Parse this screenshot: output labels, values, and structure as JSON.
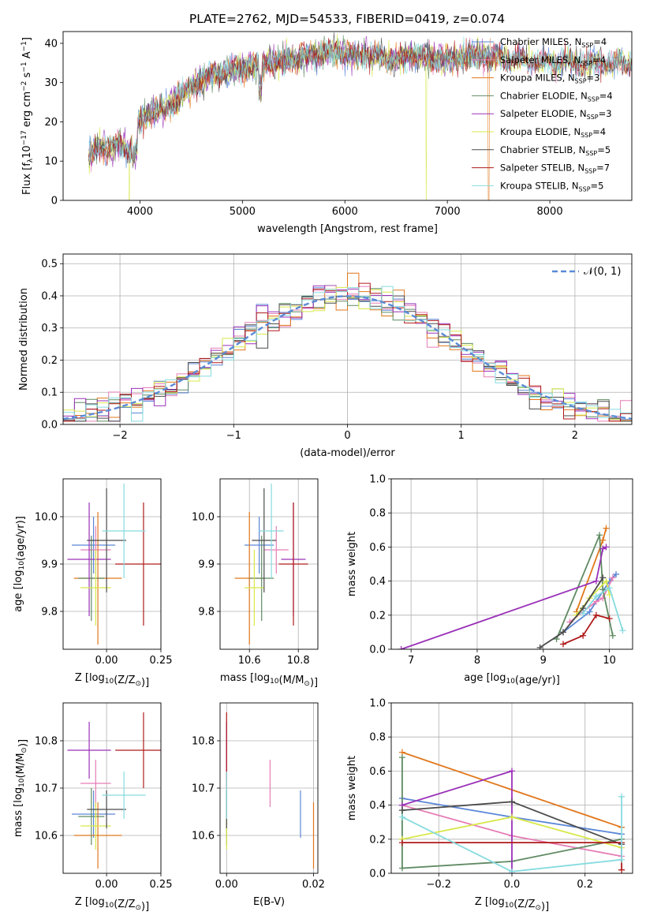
{
  "figure": {
    "title": "PLATE=2762, MJD=54533, FIBERID=0419, z=0.074"
  },
  "colors": {
    "Chabrier MILES": "#5a86d6",
    "Salpeter MILES": "#e67eb6",
    "Kroupa MILES": "#e1771b",
    "Chabrier ELODIE": "#5f8a62",
    "Salpeter ELODIE": "#9a31b8",
    "Kroupa ELODIE": "#d8e84b",
    "Chabrier STELIB": "#4b4b4b",
    "Salpeter STELIB": "#b01a1a",
    "Kroupa STELIB": "#86dbdf",
    "normal": "#5b8bd6"
  },
  "chart_data": [
    {
      "id": "spectrum",
      "type": "line",
      "title": "PLATE=2762, MJD=54533, FIBERID=0419, z=0.074",
      "xlabel": "wavelength [Angstrom, rest frame]",
      "ylabel_parts": [
        "Flux [f",
        "λ",
        "10",
        "−17",
        " erg cm",
        "−2",
        " s",
        "−1",
        " A",
        "−1",
        "]"
      ],
      "xlim": [
        3250,
        8800
      ],
      "ylim": [
        0,
        43
      ],
      "xticks": [
        "4000",
        "5000",
        "6000",
        "7000",
        "8000"
      ],
      "xtick_values": [
        4000,
        5000,
        6000,
        7000,
        8000
      ],
      "yticks": [
        "0",
        "10",
        "20",
        "30",
        "40"
      ],
      "ytick_values": [
        0,
        10,
        20,
        30,
        40
      ],
      "grid": false,
      "legend_position": "top-right",
      "continuum": {
        "x": [
          3500,
          3600,
          3700,
          3800,
          3900,
          4000,
          4100,
          4200,
          4300,
          4400,
          4500,
          4700,
          4900,
          5100,
          5300,
          5500,
          5700,
          5900,
          6100,
          6300,
          6500,
          6700,
          6900,
          7100,
          7300,
          7500,
          7700,
          7900,
          8100,
          8300,
          8500,
          8700
        ],
        "y": [
          11,
          14,
          13,
          15,
          12,
          21,
          22,
          23,
          24,
          27,
          29,
          32,
          33,
          34,
          35,
          36,
          37,
          38,
          37,
          37,
          36,
          37,
          36,
          36,
          37,
          36,
          36,
          35,
          35,
          35,
          35,
          35
        ]
      },
      "series": [
        {
          "name": "Chabrier MILES",
          "N": "4"
        },
        {
          "name": "Salpeter MILES",
          "N": "4"
        },
        {
          "name": "Kroupa MILES",
          "N": "3"
        },
        {
          "name": "Chabrier ELODIE",
          "N": "4"
        },
        {
          "name": "Salpeter ELODIE",
          "N": "3"
        },
        {
          "name": "Kroupa ELODIE",
          "N": "4"
        },
        {
          "name": "Chabrier STELIB",
          "N": "5"
        },
        {
          "name": "Salpeter STELIB",
          "N": "7"
        },
        {
          "name": "Kroupa STELIB",
          "N": "5"
        }
      ]
    },
    {
      "id": "residuals",
      "type": "bar",
      "xlabel": "(data-model)/error",
      "ylabel": "Normed distribution",
      "xlim": [
        -2.5,
        2.5
      ],
      "ylim": [
        0,
        0.53
      ],
      "xticks": [
        "−2",
        "−1",
        "0",
        "1",
        "2"
      ],
      "xtick_values": [
        -2,
        -1,
        0,
        1,
        2
      ],
      "yticks": [
        "0.0",
        "0.1",
        "0.2",
        "0.3",
        "0.4",
        "0.5"
      ],
      "ytick_values": [
        0,
        0.1,
        0.2,
        0.3,
        0.4,
        0.5
      ],
      "grid": true,
      "legend_position": "top-right",
      "normal_label": "𝒩(0, 1)",
      "bin_width": 0.1
    },
    {
      "id": "age-vs-Z",
      "type": "scatter",
      "xlabel": "Z [log10(Z/Z⊙)]",
      "ylabel": "age  [log10(age/yr)]",
      "xlim": [
        -0.2,
        0.25
      ],
      "ylim": [
        9.72,
        10.08
      ],
      "xticks": [
        "0.00",
        "0.25"
      ],
      "xtick_values": [
        0,
        0.25
      ],
      "yticks": [
        "9.8",
        "9.9",
        "10.0"
      ],
      "ytick_values": [
        9.8,
        9.9,
        10.0
      ],
      "grid": true,
      "points": [
        {
          "series": "Chabrier MILES",
          "x": -0.06,
          "xerr": 0.1,
          "y": 9.94,
          "yerr": 0.06
        },
        {
          "series": "Salpeter MILES",
          "x": -0.05,
          "xerr": 0.07,
          "y": 9.93,
          "yerr": 0.05
        },
        {
          "series": "Kroupa MILES",
          "x": -0.04,
          "xerr": 0.11,
          "y": 9.87,
          "yerr": 0.14
        },
        {
          "series": "Chabrier ELODIE",
          "x": -0.07,
          "xerr": 0.06,
          "y": 9.87,
          "yerr": 0.09
        },
        {
          "series": "Salpeter ELODIE",
          "x": -0.08,
          "xerr": 0.1,
          "y": 9.91,
          "yerr": 0.12
        },
        {
          "series": "Kroupa ELODIE",
          "x": -0.05,
          "xerr": 0.07,
          "y": 9.85,
          "yerr": 0.08
        },
        {
          "series": "Chabrier STELIB",
          "x": 0.0,
          "xerr": 0.09,
          "y": 9.95,
          "yerr": 0.11
        },
        {
          "series": "Salpeter STELIB",
          "x": 0.17,
          "xerr": 0.13,
          "y": 9.9,
          "yerr": 0.13
        },
        {
          "series": "Kroupa STELIB",
          "x": 0.08,
          "xerr": 0.1,
          "y": 9.97,
          "yerr": 0.1
        }
      ]
    },
    {
      "id": "age-vs-mass",
      "type": "scatter",
      "xlabel": "mass [log10(M/M⊙)]",
      "ylabel": "",
      "xlim": [
        10.48,
        10.88
      ],
      "ylim": [
        9.72,
        10.08
      ],
      "xticks": [
        "10.6",
        "10.8"
      ],
      "xtick_values": [
        10.6,
        10.8
      ],
      "yticks": [
        "9.8",
        "9.9",
        "10.0"
      ],
      "ytick_values": [
        9.8,
        9.9,
        10.0
      ],
      "grid": true,
      "points": [
        {
          "series": "Chabrier MILES",
          "x": 10.64,
          "xerr": 0.06,
          "y": 9.94,
          "yerr": 0.06
        },
        {
          "series": "Salpeter MILES",
          "x": 10.71,
          "xerr": 0.05,
          "y": 9.93,
          "yerr": 0.05
        },
        {
          "series": "Kroupa MILES",
          "x": 10.6,
          "xerr": 0.06,
          "y": 9.87,
          "yerr": 0.14
        },
        {
          "series": "Chabrier ELODIE",
          "x": 10.65,
          "xerr": 0.05,
          "y": 9.87,
          "yerr": 0.09
        },
        {
          "series": "Salpeter ELODIE",
          "x": 10.78,
          "xerr": 0.05,
          "y": 9.91,
          "yerr": 0.12
        },
        {
          "series": "Kroupa ELODIE",
          "x": 10.62,
          "xerr": 0.04,
          "y": 9.85,
          "yerr": 0.08
        },
        {
          "series": "Chabrier STELIB",
          "x": 10.66,
          "xerr": 0.05,
          "y": 9.95,
          "yerr": 0.11
        },
        {
          "series": "Salpeter STELIB",
          "x": 10.78,
          "xerr": 0.06,
          "y": 9.9,
          "yerr": 0.13
        },
        {
          "series": "Kroupa STELIB",
          "x": 10.69,
          "xerr": 0.05,
          "y": 9.97,
          "yerr": 0.1
        }
      ]
    },
    {
      "id": "weight-vs-age",
      "type": "line",
      "xlabel": "age  [log10(age/yr)]",
      "ylabel": "mass weight",
      "xlim": [
        6.7,
        10.35
      ],
      "ylim": [
        0,
        1
      ],
      "xticks": [
        "7",
        "8",
        "9",
        "10"
      ],
      "xtick_values": [
        7,
        8,
        9,
        10
      ],
      "yticks": [
        "0.0",
        "0.2",
        "0.4",
        "0.6",
        "0.8",
        "1.0"
      ],
      "ytick_values": [
        0,
        0.2,
        0.4,
        0.6,
        0.8,
        1.0
      ],
      "grid": true,
      "series": [
        {
          "name": "Chabrier MILES",
          "x": [
            9.3,
            9.7,
            10.0,
            10.1
          ],
          "y": [
            0.1,
            0.22,
            0.4,
            0.44
          ]
        },
        {
          "name": "Salpeter MILES",
          "x": [
            9.4,
            9.8,
            9.9,
            10.05
          ],
          "y": [
            0.16,
            0.28,
            0.3,
            0.42
          ]
        },
        {
          "name": "Kroupa MILES",
          "x": [
            9.5,
            9.9,
            9.95
          ],
          "y": [
            0.22,
            0.64,
            0.71
          ]
        },
        {
          "name": "Chabrier ELODIE",
          "x": [
            9.2,
            9.85,
            9.9,
            10.05
          ],
          "y": [
            0.06,
            0.67,
            0.35,
            0.08
          ]
        },
        {
          "name": "Salpeter ELODIE",
          "x": [
            6.85,
            9.8,
            9.9,
            9.95
          ],
          "y": [
            0.0,
            0.4,
            0.59,
            0.6
          ]
        },
        {
          "name": "Kroupa ELODIE",
          "x": [
            9.5,
            9.7,
            9.95,
            10.0
          ],
          "y": [
            0.2,
            0.3,
            0.4,
            0.32
          ]
        },
        {
          "name": "Chabrier STELIB",
          "x": [
            8.95,
            9.3,
            9.6,
            9.9
          ],
          "y": [
            0.01,
            0.1,
            0.24,
            0.42
          ]
        },
        {
          "name": "Salpeter STELIB",
          "x": [
            9.3,
            9.6,
            9.8,
            10.0
          ],
          "y": [
            0.03,
            0.08,
            0.2,
            0.18
          ]
        },
        {
          "name": "Kroupa STELIB",
          "x": [
            9.6,
            9.8,
            10.0,
            10.2
          ],
          "y": [
            0.21,
            0.31,
            0.36,
            0.11
          ]
        }
      ]
    },
    {
      "id": "mass-vs-Z",
      "type": "scatter",
      "xlabel": "Z [log10(Z/Z⊙)]",
      "ylabel": "mass [log10(M/M⊙)]",
      "xlim": [
        -0.2,
        0.25
      ],
      "ylim": [
        10.52,
        10.88
      ],
      "xticks": [
        "0.00",
        "0.25"
      ],
      "xtick_values": [
        0,
        0.25
      ],
      "yticks": [
        "10.6",
        "10.7",
        "10.8"
      ],
      "ytick_values": [
        10.6,
        10.7,
        10.8
      ],
      "grid": true,
      "points": [
        {
          "series": "Chabrier MILES",
          "x": -0.06,
          "xerr": 0.1,
          "y": 10.645,
          "yerr": 0.05
        },
        {
          "series": "Salpeter MILES",
          "x": -0.05,
          "xerr": 0.07,
          "y": 10.71,
          "yerr": 0.05
        },
        {
          "series": "Kroupa MILES",
          "x": -0.04,
          "xerr": 0.11,
          "y": 10.6,
          "yerr": 0.07
        },
        {
          "series": "Chabrier ELODIE",
          "x": -0.07,
          "xerr": 0.06,
          "y": 10.64,
          "yerr": 0.06
        },
        {
          "series": "Salpeter ELODIE",
          "x": -0.08,
          "xerr": 0.1,
          "y": 10.78,
          "yerr": 0.06
        },
        {
          "series": "Kroupa ELODIE",
          "x": -0.05,
          "xerr": 0.07,
          "y": 10.62,
          "yerr": 0.05
        },
        {
          "series": "Chabrier STELIB",
          "x": 0.0,
          "xerr": 0.09,
          "y": 10.655,
          "yerr": 0.04
        },
        {
          "series": "Salpeter STELIB",
          "x": 0.17,
          "xerr": 0.13,
          "y": 10.78,
          "yerr": 0.08
        },
        {
          "series": "Kroupa STELIB",
          "x": 0.08,
          "xerr": 0.1,
          "y": 10.685,
          "yerr": 0.05
        }
      ]
    },
    {
      "id": "mass-vs-ebv",
      "type": "scatter",
      "xlabel": "E(B-V)",
      "ylabel": "",
      "xlim": [
        -0.0015,
        0.021
      ],
      "ylim": [
        10.52,
        10.88
      ],
      "xticks": [
        "0.00",
        "0.02"
      ],
      "xtick_values": [
        0,
        0.02
      ],
      "yticks": [
        "10.6",
        "10.7",
        "10.8"
      ],
      "ytick_values": [
        10.6,
        10.7,
        10.8
      ],
      "grid": true,
      "points": [
        {
          "series": "Chabrier MILES",
          "x": 0.017,
          "xerr": 0,
          "y": 10.645,
          "yerr": 0.05
        },
        {
          "series": "Salpeter MILES",
          "x": 0.01,
          "xerr": 0,
          "y": 10.71,
          "yerr": 0.05
        },
        {
          "series": "Kroupa MILES",
          "x": 0.02,
          "xerr": 0,
          "y": 10.6,
          "yerr": 0.07
        },
        {
          "series": "Chabrier ELODIE",
          "x": 0.0,
          "xerr": 0,
          "y": 10.64,
          "yerr": 0.06
        },
        {
          "series": "Salpeter ELODIE",
          "x": 0.0,
          "xerr": 0,
          "y": 10.78,
          "yerr": 0.06
        },
        {
          "series": "Kroupa ELODIE",
          "x": 0.0,
          "xerr": 0,
          "y": 10.62,
          "yerr": 0.05
        },
        {
          "series": "Chabrier STELIB",
          "x": 0.0,
          "xerr": 0,
          "y": 10.655,
          "yerr": 0.04
        },
        {
          "series": "Salpeter STELIB",
          "x": 0.0,
          "xerr": 0,
          "y": 10.78,
          "yerr": 0.08
        },
        {
          "series": "Kroupa STELIB",
          "x": 0.0,
          "xerr": 0,
          "y": 10.685,
          "yerr": 0.05
        }
      ]
    },
    {
      "id": "weight-vs-Z",
      "type": "line",
      "xlabel": "Z [log10(Z/Z⊙)]",
      "ylabel": "mass weight",
      "xlim": [
        -0.33,
        0.33
      ],
      "ylim": [
        0,
        1
      ],
      "xticks": [
        "−0.2",
        "0.0",
        "0.2"
      ],
      "xtick_values": [
        -0.2,
        0,
        0.2
      ],
      "yticks": [
        "0.0",
        "0.2",
        "0.4",
        "0.6",
        "0.8",
        "1.0"
      ],
      "ytick_values": [
        0,
        0.2,
        0.4,
        0.6,
        0.8,
        1.0
      ],
      "grid": true,
      "series": [
        {
          "name": "Chabrier MILES",
          "x": [
            -0.3,
            0.0,
            0.3
          ],
          "y": [
            0.44,
            0.33,
            0.23
          ]
        },
        {
          "name": "Salpeter MILES",
          "x": [
            -0.3,
            0.0,
            0.3
          ],
          "y": [
            0.4,
            0.22,
            0.1
          ]
        },
        {
          "name": "Kroupa MILES",
          "x": [
            -0.3,
            0.3
          ],
          "y": [
            0.71,
            0.27
          ]
        },
        {
          "name": "Chabrier ELODIE",
          "x": [
            -0.3,
            -0.3,
            0.0,
            0.3
          ],
          "y": [
            0.68,
            0.03,
            0.07,
            0.2
          ]
        },
        {
          "name": "Salpeter ELODIE",
          "x": [
            -0.3,
            0.0,
            0.0
          ],
          "y": [
            0.4,
            0.6,
            0.0
          ]
        },
        {
          "name": "Kroupa ELODIE",
          "x": [
            -0.3,
            0.0,
            0.3
          ],
          "y": [
            0.2,
            0.33,
            0.15
          ]
        },
        {
          "name": "Chabrier STELIB",
          "x": [
            -0.3,
            0.0,
            0.3
          ],
          "y": [
            0.37,
            0.42,
            0.17
          ]
        },
        {
          "name": "Salpeter STELIB",
          "x": [
            -0.3,
            0.3,
            0.3
          ],
          "y": [
            0.18,
            0.18,
            0.02
          ]
        },
        {
          "name": "Kroupa STELIB",
          "x": [
            -0.3,
            0.0,
            0.3,
            0.3
          ],
          "y": [
            0.33,
            0.01,
            0.08,
            0.45
          ]
        }
      ]
    }
  ]
}
